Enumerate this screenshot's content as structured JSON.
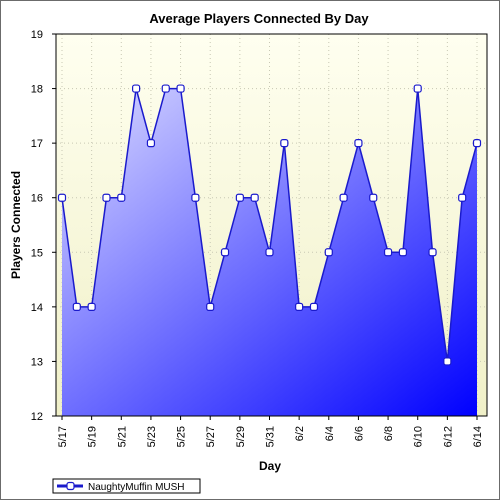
{
  "chart_data": {
    "type": "area",
    "title": "Average Players Connected By Day",
    "xlabel": "Day",
    "ylabel": "Players Connected",
    "ylim": [
      12,
      19
    ],
    "y_ticks": [
      12,
      13,
      14,
      15,
      16,
      17,
      18,
      19
    ],
    "x_tick_labels": [
      "5/17",
      "5/19",
      "5/21",
      "5/23",
      "5/25",
      "5/27",
      "5/29",
      "5/31",
      "6/2",
      "6/4",
      "6/6",
      "6/8",
      "6/10",
      "6/12",
      "6/14"
    ],
    "categories": [
      "5/17",
      "5/18",
      "5/19",
      "5/20",
      "5/21",
      "5/22",
      "5/23",
      "5/24",
      "5/25",
      "5/26",
      "5/27",
      "5/28",
      "5/29",
      "5/30",
      "5/31",
      "6/1",
      "6/2",
      "6/3",
      "6/4",
      "6/5",
      "6/6",
      "6/7",
      "6/8",
      "6/9",
      "6/10",
      "6/11",
      "6/12",
      "6/13",
      "6/14"
    ],
    "series": [
      {
        "name": "NaughtyMuffin MUSH",
        "values": [
          16,
          14,
          14,
          16,
          16,
          18,
          17,
          18,
          18,
          16,
          14,
          15,
          16,
          16,
          15,
          17,
          14,
          14,
          15,
          16,
          17,
          16,
          15,
          15,
          18,
          15,
          13,
          16,
          17
        ]
      }
    ],
    "grid": true,
    "legend_position": "bottom-left",
    "colors": {
      "line": "#1a1acc",
      "marker_fill": "#ffffff",
      "plot_bg_top": "#fffff0",
      "plot_bg_bottom": "#f0f0c8",
      "area_light": "#dcdcff",
      "area_dark": "#0000ff"
    }
  }
}
